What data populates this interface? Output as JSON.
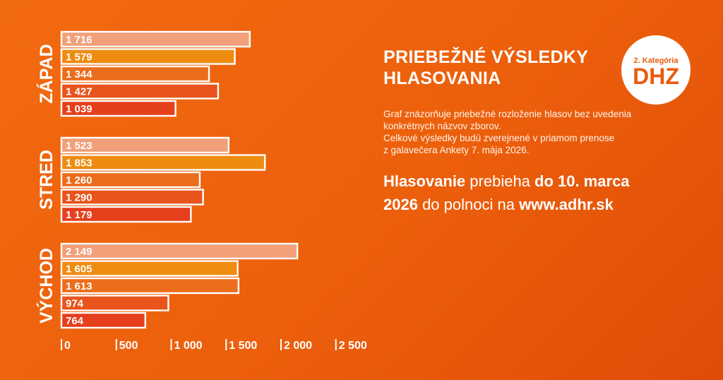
{
  "headline": {
    "line1": "PRIEBEŽNÉ VÝSLEDKY",
    "line2": "HLASOVANIA"
  },
  "badge": {
    "small": "2. Kategória",
    "big": "DHZ"
  },
  "description": {
    "line1": "Graf znázorňuje priebežné rozloženie hlasov bez uvedenia",
    "line2": "konkrétnych názvov zborov.",
    "line3": "Celkové výsledky budú zverejnené v priamom prenose",
    "line4": "z galavečera Ankety 7. mája 2026."
  },
  "cta": {
    "bold1": "Hlasovanie",
    "text1": " prebieha ",
    "bold2": "do 10. marca",
    "bold3": "2026",
    "text2": " do polnoci na ",
    "bold4": "www.adhr.sk"
  },
  "colors": {
    "background": "#ec5f0c",
    "bar_fills": [
      "#f2a07a",
      "#ee8c10",
      "#ec6d1c",
      "#e8541c",
      "#e53f1c"
    ],
    "bar_outline": "#ffffff",
    "badge_text": "#ea5b0c"
  },
  "chart_data": {
    "type": "bar",
    "orientation": "horizontal",
    "xlim": [
      0,
      2500
    ],
    "x_ticks": [
      "0",
      "500",
      "1 000",
      "1 500",
      "2 000",
      "2 500"
    ],
    "x_tick_values": [
      0,
      500,
      1000,
      1500,
      2000,
      2500
    ],
    "grid": false,
    "legend": "none",
    "groups": [
      {
        "name": "ZÁPAD",
        "values": [
          1716,
          1579,
          1344,
          1427,
          1039
        ],
        "labels": [
          "1 716",
          "1 579",
          "1 344",
          "1 427",
          "1 039"
        ]
      },
      {
        "name": "STRED",
        "values": [
          1523,
          1853,
          1260,
          1290,
          1179
        ],
        "labels": [
          "1 523",
          "1 853",
          "1 260",
          "1 290",
          "1 179"
        ]
      },
      {
        "name": "VÝCHOD",
        "values": [
          2149,
          1605,
          1613,
          974,
          764
        ],
        "labels": [
          "2 149",
          "1 605",
          "1 613",
          "974",
          "764"
        ]
      }
    ]
  }
}
